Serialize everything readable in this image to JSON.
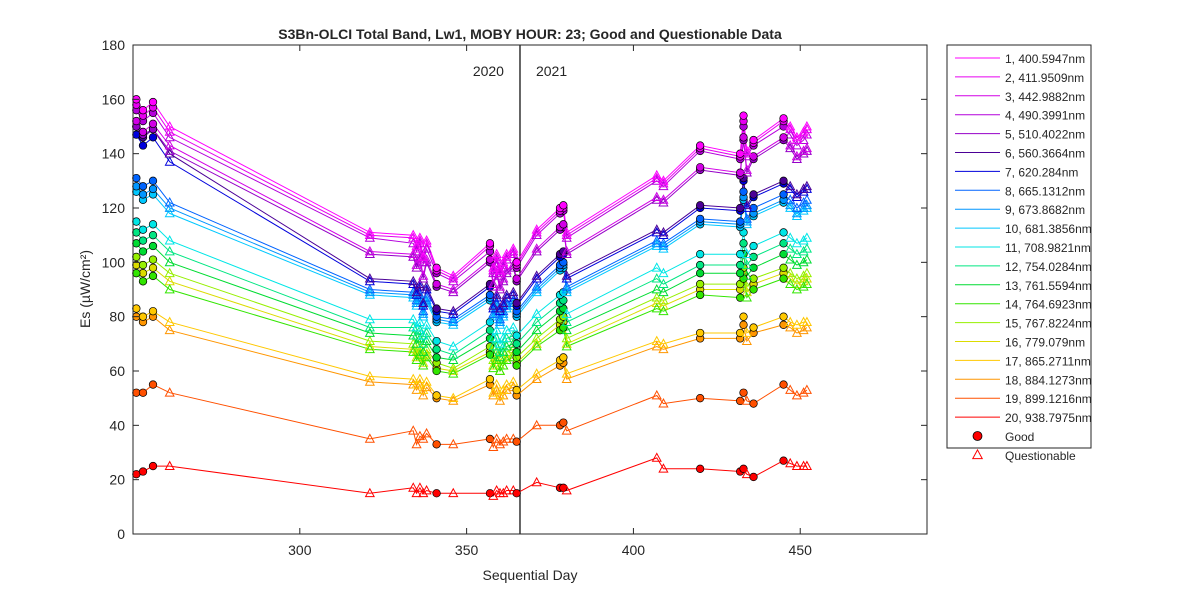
{
  "chart_data": {
    "type": "line",
    "title": "S3Bn-OLCI Total Band,  Lw1, MOBY HOUR: 23;  Good and Questionable Data",
    "xlabel": "Sequential Day",
    "ylabel": "Es (µW/cm²)",
    "xlim": [
      250,
      488
    ],
    "ylim": [
      0,
      180
    ],
    "xticks": [
      300,
      350,
      400,
      450
    ],
    "yticks": [
      0,
      20,
      40,
      60,
      80,
      100,
      120,
      140,
      160,
      180
    ],
    "grid": false,
    "legend_position": "outside-right",
    "year_boundary": {
      "x": 366,
      "left_label": "2020",
      "right_label": "2021"
    },
    "x": [
      251,
      253,
      256,
      261,
      321,
      334,
      335,
      336,
      337,
      338,
      341,
      346,
      357,
      358,
      359,
      360,
      361,
      362,
      364,
      365,
      371,
      378,
      379,
      380,
      407,
      409,
      420,
      432,
      433,
      434,
      436,
      445,
      447,
      449,
      451,
      452
    ],
    "questionable_days": [
      261,
      321,
      334,
      335,
      336,
      337,
      338,
      346,
      358,
      359,
      360,
      361,
      362,
      364,
      371,
      380,
      407,
      409,
      434,
      447,
      449,
      451,
      452
    ],
    "series": [
      {
        "name": "1, 400.5947nm",
        "color": "#ff00ff",
        "values": [
          160,
          156,
          159,
          150,
          111,
          110,
          106,
          109,
          102,
          108,
          98,
          95,
          107,
          98,
          103,
          97,
          100,
          103,
          105,
          100,
          112,
          120,
          121,
          111,
          132,
          130,
          143,
          140,
          154,
          141,
          145,
          153,
          150,
          146,
          148,
          150
        ]
      },
      {
        "name": "2, 411.9509nm",
        "color": "#e600f0",
        "values": [
          158,
          154,
          157,
          148,
          110,
          109,
          105,
          108,
          101,
          107,
          97,
          94,
          106,
          97,
          102,
          96,
          99,
          102,
          104,
          99,
          111,
          119,
          120,
          110,
          131,
          129,
          142,
          139,
          152,
          140,
          144,
          152,
          149,
          145,
          147,
          149
        ]
      },
      {
        "name": "3, 442.9882nm",
        "color": "#d200e6",
        "values": [
          152,
          148,
          151,
          143,
          104,
          103,
          99,
          102,
          95,
          101,
          92,
          90,
          101,
          92,
          97,
          91,
          94,
          97,
          99,
          94,
          105,
          113,
          114,
          104,
          124,
          123,
          135,
          133,
          146,
          134,
          139,
          146,
          143,
          139,
          141,
          142
        ]
      },
      {
        "name": "4, 490.3991nm",
        "color": "#b400dc",
        "values": [
          156,
          152,
          155,
          146,
          109,
          107,
          104,
          107,
          100,
          105,
          96,
          93,
          104,
          96,
          101,
          95,
          98,
          101,
          103,
          98,
          110,
          118,
          119,
          109,
          130,
          128,
          141,
          138,
          150,
          139,
          143,
          150,
          147,
          143,
          145,
          147
        ]
      },
      {
        "name": "5, 510.4022nm",
        "color": "#9600c8",
        "values": [
          150,
          147,
          149,
          141,
          103,
          102,
          98,
          101,
          94,
          100,
          91,
          89,
          100,
          91,
          96,
          90,
          93,
          96,
          98,
          93,
          104,
          112,
          113,
          103,
          123,
          122,
          134,
          132,
          145,
          133,
          138,
          145,
          142,
          138,
          140,
          141
        ]
      },
      {
        "name": "6, 560.3664nm",
        "color": "#4b0096",
        "values": [
          150,
          146,
          149,
          140,
          94,
          93,
          89,
          92,
          85,
          91,
          83,
          82,
          92,
          84,
          88,
          83,
          85,
          88,
          89,
          85,
          95,
          103,
          104,
          95,
          112,
          111,
          121,
          120,
          131,
          121,
          125,
          130,
          128,
          125,
          127,
          128
        ]
      },
      {
        "name": "7,  620.284nm",
        "color": "#0000dc",
        "values": [
          147,
          143,
          146,
          137,
          93,
          92,
          88,
          91,
          84,
          90,
          82,
          81,
          91,
          83,
          87,
          82,
          84,
          87,
          88,
          84,
          94,
          102,
          103,
          94,
          111,
          110,
          120,
          119,
          130,
          120,
          124,
          129,
          127,
          124,
          126,
          127
        ]
      },
      {
        "name": "8, 665.1312nm",
        "color": "#0064ff",
        "values": [
          131,
          128,
          130,
          122,
          90,
          89,
          86,
          88,
          82,
          87,
          80,
          79,
          88,
          81,
          85,
          79,
          82,
          85,
          86,
          82,
          91,
          99,
          100,
          91,
          108,
          107,
          116,
          115,
          126,
          116,
          120,
          125,
          123,
          120,
          122,
          123
        ]
      },
      {
        "name": "9, 673.8682nm",
        "color": "#0096ff",
        "values": [
          128,
          125,
          127,
          120,
          89,
          88,
          85,
          87,
          81,
          86,
          79,
          78,
          87,
          80,
          84,
          78,
          81,
          84,
          85,
          81,
          90,
          98,
          99,
          90,
          107,
          106,
          115,
          114,
          124,
          115,
          118,
          123,
          121,
          118,
          120,
          121
        ]
      },
      {
        "name": "10, 681.3856nm",
        "color": "#00c8ff",
        "values": [
          126,
          123,
          125,
          118,
          88,
          87,
          84,
          86,
          80,
          85,
          78,
          77,
          86,
          79,
          83,
          77,
          80,
          83,
          84,
          80,
          89,
          97,
          98,
          89,
          106,
          105,
          114,
          113,
          123,
          114,
          117,
          122,
          120,
          117,
          119,
          120
        ]
      },
      {
        "name": "11, 708.9821nm",
        "color": "#00e6e6",
        "values": [
          115,
          112,
          114,
          108,
          79,
          79,
          76,
          78,
          73,
          77,
          71,
          69,
          78,
          72,
          75,
          70,
          72,
          75,
          76,
          73,
          81,
          88,
          89,
          81,
          98,
          96,
          103,
          103,
          111,
          103,
          106,
          111,
          109,
          107,
          108,
          109
        ]
      },
      {
        "name": "12, 754.0284nm",
        "color": "#00e682",
        "values": [
          111,
          108,
          110,
          104,
          76,
          76,
          73,
          75,
          70,
          74,
          68,
          66,
          75,
          69,
          72,
          67,
          69,
          72,
          73,
          70,
          78,
          85,
          86,
          78,
          94,
          92,
          99,
          99,
          107,
          99,
          102,
          107,
          105,
          103,
          104,
          105
        ]
      },
      {
        "name": "13, 761.5594nm",
        "color": "#00dc32",
        "values": [
          107,
          104,
          106,
          100,
          74,
          73,
          70,
          72,
          67,
          71,
          65,
          64,
          72,
          66,
          69,
          65,
          67,
          69,
          70,
          67,
          75,
          82,
          83,
          75,
          90,
          89,
          96,
          96,
          103,
          95,
          98,
          103,
          101,
          99,
          100,
          101
        ]
      },
      {
        "name": "14, 764.6923nm",
        "color": "#32e600",
        "values": [
          96,
          93,
          95,
          90,
          68,
          67,
          64,
          66,
          62,
          65,
          60,
          59,
          66,
          61,
          64,
          60,
          62,
          64,
          65,
          62,
          69,
          75,
          76,
          69,
          83,
          82,
          88,
          87,
          94,
          87,
          90,
          94,
          92,
          90,
          91,
          92
        ]
      },
      {
        "name": "15, 767.8224nm",
        "color": "#96f000",
        "values": [
          102,
          99,
          101,
          96,
          71,
          70,
          67,
          69,
          65,
          68,
          63,
          61,
          69,
          64,
          67,
          62,
          64,
          67,
          68,
          65,
          72,
          79,
          80,
          72,
          87,
          86,
          92,
          92,
          98,
          91,
          94,
          98,
          96,
          94,
          95,
          96
        ]
      },
      {
        "name": "16,  779.079nm",
        "color": "#dcdc00",
        "values": [
          99,
          96,
          98,
          93,
          69,
          68,
          65,
          67,
          63,
          66,
          61,
          60,
          67,
          62,
          65,
          60,
          62,
          65,
          66,
          63,
          70,
          77,
          78,
          70,
          85,
          84,
          90,
          90,
          96,
          89,
          92,
          96,
          94,
          92,
          93,
          94
        ]
      },
      {
        "name": "17, 865.2711nm",
        "color": "#ffc800",
        "values": [
          83,
          80,
          82,
          78,
          58,
          57,
          55,
          57,
          53,
          56,
          51,
          50,
          57,
          52,
          55,
          51,
          53,
          55,
          56,
          53,
          59,
          64,
          65,
          59,
          71,
          70,
          74,
          74,
          80,
          74,
          76,
          80,
          78,
          77,
          78,
          78
        ]
      },
      {
        "name": "18, 884.1273nm",
        "color": "#ff9600",
        "values": [
          80,
          78,
          80,
          75,
          56,
          55,
          53,
          55,
          51,
          54,
          50,
          49,
          55,
          51,
          53,
          49,
          51,
          53,
          54,
          51,
          57,
          62,
          63,
          57,
          69,
          68,
          72,
          72,
          77,
          71,
          74,
          77,
          76,
          74,
          75,
          76
        ]
      },
      {
        "name": "19, 899.1216nm",
        "color": "#ff5000",
        "values": [
          52,
          52,
          55,
          52,
          35,
          38,
          33,
          36,
          35,
          37,
          33,
          33,
          35,
          32,
          35,
          33,
          34,
          35,
          35,
          34,
          40,
          40,
          41,
          38,
          51,
          48,
          50,
          49,
          52,
          49,
          48,
          55,
          53,
          51,
          52,
          53
        ]
      },
      {
        "name": "20, 938.7975nm",
        "color": "#ff0000",
        "values": [
          22,
          23,
          25,
          25,
          15,
          17,
          15,
          17,
          15,
          16,
          15,
          15,
          15,
          14,
          16,
          15,
          15,
          16,
          16,
          15,
          19,
          17,
          17,
          16,
          28,
          24,
          24,
          23,
          24,
          22,
          21,
          27,
          26,
          25,
          25,
          25
        ]
      }
    ],
    "marker_legend": [
      {
        "name": "Good",
        "marker": "circle"
      },
      {
        "name": "Questionable",
        "marker": "triangle"
      }
    ]
  }
}
